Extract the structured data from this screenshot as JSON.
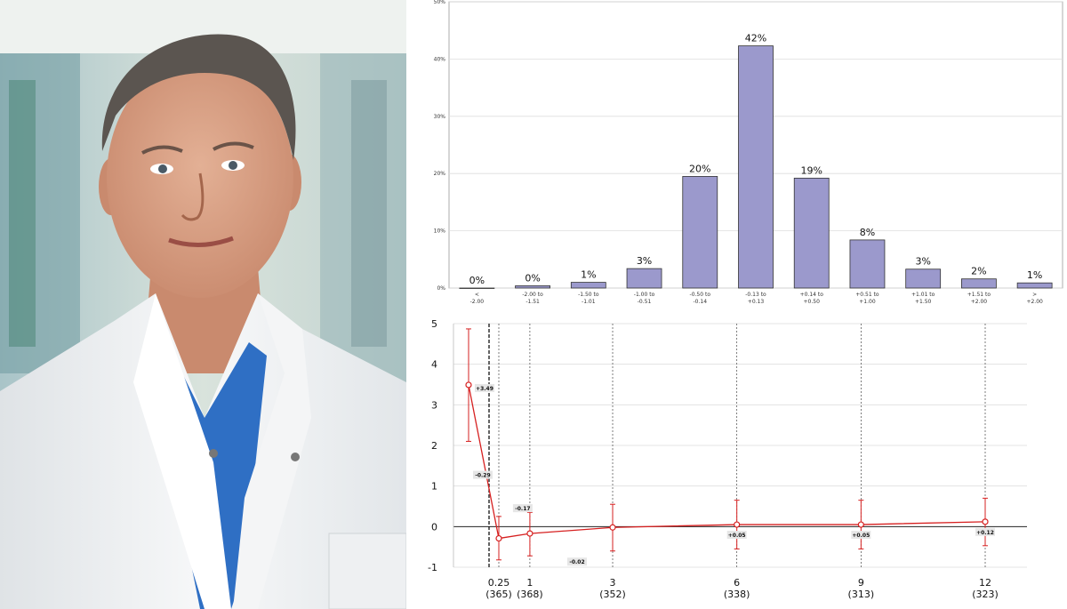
{
  "photo": {
    "subject": "portrait of man in white coat"
  },
  "colors": {
    "bar_fill": "#9b99cc",
    "bar_stroke": "#333333",
    "line": "#d62020",
    "grid": "#dddddd"
  },
  "chart_data": [
    {
      "type": "bar",
      "categories": [
        "< -2.00",
        "-2.00 to -1.51",
        "-1.50 to -1.01",
        "-1.00 to -0.51",
        "-0.50 to -0.14",
        "-0.13 to +0.13",
        "+0.14 to +0.50",
        "+0.51 to +1.00",
        "+1.01 to +1.50",
        "+1.51 to +2.00",
        "> +2.00"
      ],
      "category_lines": [
        [
          "<",
          "-2.00"
        ],
        [
          "-2.00 to",
          "-1.51"
        ],
        [
          "-1.50 to",
          "-1.01"
        ],
        [
          "-1.00 to",
          "-0.51"
        ],
        [
          "-0.50 to",
          "-0.14"
        ],
        [
          "-0.13 to",
          "+0.13"
        ],
        [
          "+0.14 to",
          "+0.50"
        ],
        [
          "+0.51 to",
          "+1.00"
        ],
        [
          "+1.01 to",
          "+1.50"
        ],
        [
          "+1.51 to",
          "+2.00"
        ],
        [
          ">",
          "+2.00"
        ]
      ],
      "values": [
        0,
        0.4,
        1,
        3.4,
        19.5,
        42.3,
        19.2,
        8.4,
        3.3,
        1.6,
        0.9
      ],
      "value_labels": [
        "0%",
        "0%",
        "1%",
        "3%",
        "20%",
        "42%",
        "19%",
        "8%",
        "3%",
        "2%",
        "1%"
      ],
      "ylim": [
        0,
        50
      ],
      "yticks": [
        "0%",
        "10%",
        "20%",
        "30%",
        "40%",
        "50%"
      ],
      "grid": true
    },
    {
      "type": "line",
      "x": [
        0,
        0.25,
        1,
        3,
        6,
        9,
        12
      ],
      "y": [
        3.49,
        -0.29,
        -0.17,
        -0.02,
        0.05,
        0.05,
        0.12
      ],
      "err_low": [
        2.1,
        -0.82,
        -0.72,
        -0.6,
        -0.55,
        -0.55,
        -0.47
      ],
      "err_high": [
        4.87,
        0.25,
        0.35,
        0.55,
        0.65,
        0.65,
        0.7
      ],
      "point_labels": [
        "+3.49",
        "-0.29",
        "-0.17",
        "-0.02",
        "+0.05",
        "+0.05",
        "+0.12"
      ],
      "xtick_values": [
        0.25,
        1,
        3,
        6,
        9,
        12
      ],
      "xtick_labels": [
        "0.25",
        "1",
        "3",
        "6",
        "9",
        "12"
      ],
      "xtick_counts": [
        "(365)",
        "(368)",
        "(352)",
        "(338)",
        "(313)",
        "(323)"
      ],
      "ylim": [
        -1,
        5
      ],
      "yticks": [
        "-1",
        "0",
        "1",
        "2",
        "3",
        "4",
        "5"
      ],
      "grid": true
    }
  ]
}
